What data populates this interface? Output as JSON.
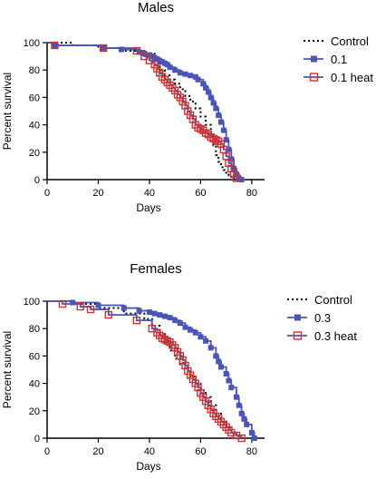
{
  "chart_data": [
    {
      "type": "line",
      "title": "Males",
      "xlabel": "Days",
      "ylabel": "Percent survival",
      "xlim": [
        0,
        85
      ],
      "ylim": [
        0,
        100
      ],
      "x_ticks": [
        0,
        20,
        40,
        60,
        80
      ],
      "y_ticks": [
        0,
        20,
        40,
        60,
        80,
        100
      ],
      "legend_position": "right",
      "series": [
        {
          "name": "Control",
          "style": "dotted",
          "color": "#000000",
          "marker": "none",
          "x": [
            0,
            10,
            20,
            30,
            38,
            42,
            44,
            46,
            48,
            50,
            52,
            54,
            56,
            58,
            60,
            62,
            64,
            65,
            66,
            67,
            68,
            69,
            70,
            71,
            72,
            73
          ],
          "y": [
            100,
            98,
            96,
            94,
            92,
            85,
            80,
            76,
            73,
            70,
            66,
            61,
            57,
            52,
            46,
            40,
            32,
            25,
            18,
            13,
            9,
            7,
            5,
            3,
            1,
            0
          ]
        },
        {
          "name": "0.1",
          "style": "solid",
          "color": "#4a55b5",
          "marker": "square-filled",
          "x": [
            0,
            3,
            22,
            29,
            36,
            38,
            40,
            41,
            42,
            43,
            44,
            45,
            46,
            47,
            48,
            50,
            52,
            54,
            56,
            58,
            59,
            61,
            62,
            63,
            64,
            65,
            66,
            67,
            68,
            69,
            70,
            71,
            72,
            73,
            74,
            75,
            76
          ],
          "y": [
            100,
            98,
            96,
            95,
            93,
            92,
            91,
            90,
            89,
            88,
            87,
            86,
            85,
            84,
            82,
            80,
            78,
            77,
            76,
            75,
            73,
            70,
            67,
            64,
            60,
            56,
            52,
            47,
            42,
            36,
            29,
            22,
            15,
            8,
            4,
            1,
            0
          ]
        },
        {
          "name": "0.1 heat",
          "style": "solid",
          "color": "#4a55b5",
          "marker": "square-open",
          "marker_color": "#cc3333",
          "x": [
            0,
            3,
            22,
            35,
            38,
            40,
            42,
            43,
            44,
            45,
            46,
            47,
            48,
            49,
            50,
            51,
            52,
            53,
            54,
            55,
            56,
            57,
            58,
            59,
            60,
            61,
            62,
            63,
            64,
            65,
            66,
            67,
            68,
            69,
            70,
            71,
            72,
            73,
            74
          ],
          "y": [
            100,
            98,
            96,
            94,
            90,
            87,
            84,
            81,
            78,
            75,
            73,
            71,
            69,
            67,
            65,
            62,
            60,
            57,
            54,
            50,
            47,
            44,
            40,
            38,
            37,
            36,
            34,
            33,
            31,
            30,
            29,
            28,
            26,
            22,
            17,
            12,
            8,
            4,
            1
          ]
        }
      ]
    },
    {
      "type": "line",
      "title": "Females",
      "xlabel": "Days",
      "ylabel": "Percent survival",
      "xlim": [
        0,
        85
      ],
      "ylim": [
        0,
        100
      ],
      "x_ticks": [
        0,
        20,
        40,
        60,
        80
      ],
      "y_ticks": [
        0,
        20,
        40,
        60,
        80,
        100
      ],
      "legend_position": "right",
      "series": [
        {
          "name": "Control",
          "style": "dotted",
          "color": "#000000",
          "marker": "none",
          "x": [
            0,
            10,
            20,
            30,
            38,
            41,
            44,
            46,
            48,
            50,
            52,
            54,
            56,
            58,
            60,
            62,
            64,
            66,
            68,
            70,
            72,
            74,
            75
          ],
          "y": [
            100,
            98,
            95,
            91,
            87,
            82,
            76,
            70,
            64,
            58,
            54,
            50,
            45,
            40,
            35,
            30,
            24,
            18,
            12,
            8,
            4,
            1,
            0
          ]
        },
        {
          "name": "0.3",
          "style": "solid",
          "color": "#4a55b5",
          "marker": "square-filled",
          "x": [
            0,
            10,
            20,
            30,
            36,
            40,
            42,
            44,
            46,
            48,
            50,
            52,
            54,
            56,
            58,
            60,
            62,
            64,
            66,
            67,
            68,
            70,
            71,
            72,
            74,
            75,
            76,
            77,
            78,
            80,
            81
          ],
          "y": [
            100,
            99,
            97,
            95,
            93,
            92,
            91,
            90,
            89,
            88,
            86,
            84,
            81,
            79,
            77,
            74,
            71,
            66,
            60,
            56,
            52,
            47,
            42,
            37,
            30,
            24,
            18,
            14,
            10,
            4,
            0
          ]
        },
        {
          "name": "0.3 heat",
          "style": "solid",
          "color": "#4a55b5",
          "marker": "square-open",
          "marker_color": "#cc3333",
          "x": [
            0,
            6,
            13,
            17,
            24,
            35,
            41,
            43,
            44,
            45,
            46,
            47,
            48,
            49,
            50,
            51,
            52,
            53,
            54,
            55,
            56,
            57,
            58,
            59,
            60,
            61,
            62,
            63,
            64,
            65,
            66,
            67,
            68,
            69,
            70,
            71,
            72,
            74,
            76
          ],
          "y": [
            100,
            98,
            96,
            94,
            90,
            86,
            80,
            77,
            75,
            73,
            72,
            71,
            70,
            68,
            66,
            63,
            60,
            57,
            53,
            49,
            46,
            43,
            40,
            37,
            33,
            30,
            27,
            24,
            21,
            18,
            16,
            14,
            12,
            10,
            8,
            6,
            4,
            2,
            0
          ]
        }
      ]
    }
  ]
}
